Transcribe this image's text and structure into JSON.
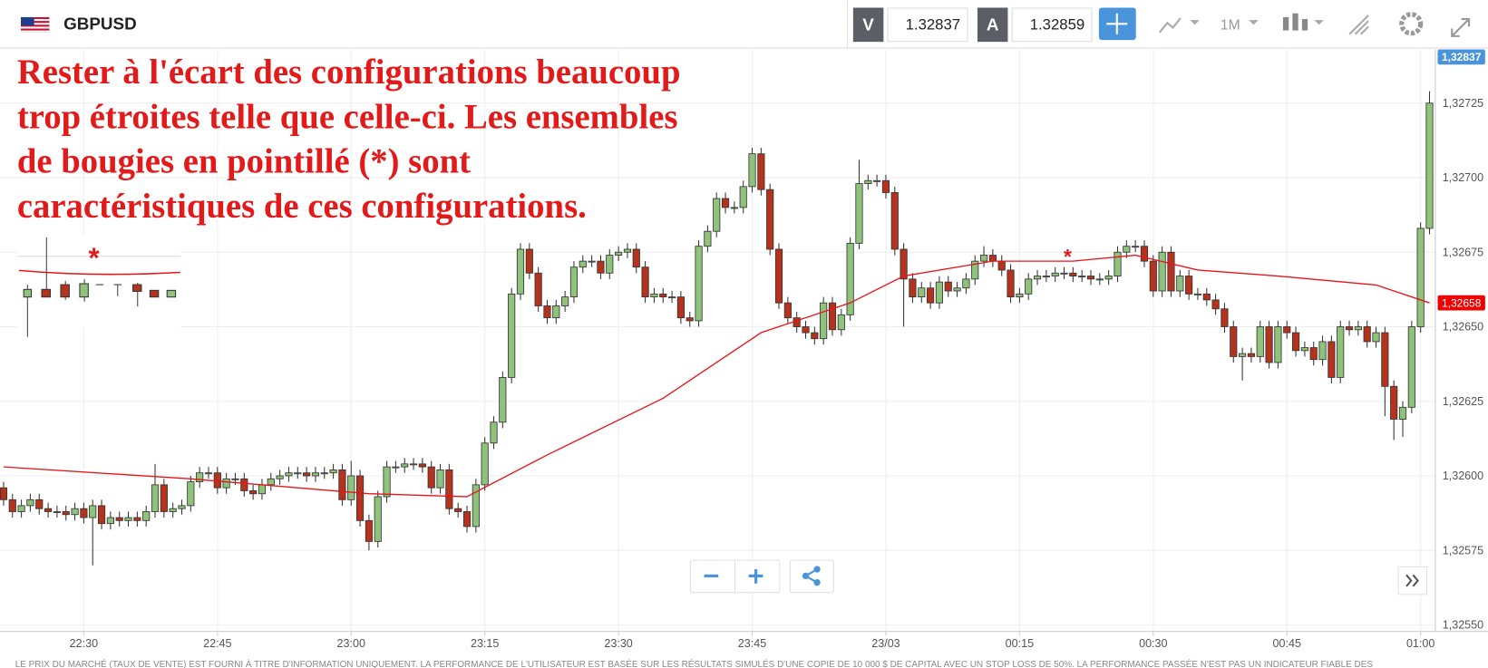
{
  "toolbar": {
    "symbol": "GBPUSD",
    "bid_label": "V",
    "bid": "1.32837",
    "ask_label": "A",
    "ask": "1.32859",
    "timeframe": "1M"
  },
  "annotation": {
    "lines": [
      "Rester à l'écart des configurations beaucoup",
      "trop étroites telle que celle-ci. Les ensembles",
      "de bougies en pointillé (*) sont",
      "caractéristiques de ces configurations."
    ],
    "markers": [
      "*",
      "*"
    ]
  },
  "chart": {
    "type": "candlestick",
    "up_color": "#8fc27a",
    "down_color": "#b5321d",
    "candles": [
      [
        1.32596,
        1.32598,
        1.3259,
        1.32592
      ],
      [
        1.32592,
        1.32594,
        1.32586,
        1.32588
      ],
      [
        1.32588,
        1.32592,
        1.32586,
        1.3259
      ],
      [
        1.3259,
        1.32594,
        1.32588,
        1.32592
      ],
      [
        1.32592,
        1.32594,
        1.32587,
        1.32589
      ],
      [
        1.32589,
        1.32591,
        1.32586,
        1.32588
      ],
      [
        1.32588,
        1.3259,
        1.32586,
        1.32588
      ],
      [
        1.32588,
        1.3259,
        1.32585,
        1.32587
      ],
      [
        1.32587,
        1.32591,
        1.32585,
        1.32589
      ],
      [
        1.32589,
        1.32591,
        1.32584,
        1.32586
      ],
      [
        1.32586,
        1.32592,
        1.3257,
        1.3259
      ],
      [
        1.3259,
        1.32592,
        1.32582,
        1.32584
      ],
      [
        1.32584,
        1.32588,
        1.32582,
        1.32586
      ],
      [
        1.32586,
        1.32588,
        1.32583,
        1.32585
      ],
      [
        1.32585,
        1.32588,
        1.32583,
        1.32586
      ],
      [
        1.32586,
        1.32588,
        1.32583,
        1.32585
      ],
      [
        1.32585,
        1.3259,
        1.32583,
        1.32588
      ],
      [
        1.32588,
        1.32604,
        1.32586,
        1.32597
      ],
      [
        1.32597,
        1.32599,
        1.32586,
        1.32588
      ],
      [
        1.32588,
        1.32591,
        1.32586,
        1.32589
      ],
      [
        1.32589,
        1.32592,
        1.32587,
        1.3259
      ],
      [
        1.3259,
        1.326,
        1.32588,
        1.32598
      ],
      [
        1.32598,
        1.32603,
        1.32596,
        1.32601
      ],
      [
        1.32601,
        1.32603,
        1.32599,
        1.32601
      ],
      [
        1.32601,
        1.32603,
        1.32594,
        1.32596
      ],
      [
        1.32596,
        1.32601,
        1.32594,
        1.32599
      ],
      [
        1.32599,
        1.32601,
        1.32597,
        1.32599
      ],
      [
        1.32599,
        1.32601,
        1.32593,
        1.32595
      ],
      [
        1.32595,
        1.32597,
        1.32592,
        1.32594
      ],
      [
        1.32594,
        1.32599,
        1.32592,
        1.32597
      ],
      [
        1.32597,
        1.32601,
        1.32595,
        1.32599
      ],
      [
        1.32599,
        1.32602,
        1.32597,
        1.326
      ],
      [
        1.326,
        1.32603,
        1.32598,
        1.32601
      ],
      [
        1.32601,
        1.32603,
        1.32599,
        1.32601
      ],
      [
        1.32601,
        1.32603,
        1.32598,
        1.326
      ],
      [
        1.326,
        1.32603,
        1.32598,
        1.32601
      ],
      [
        1.32601,
        1.32603,
        1.32599,
        1.32601
      ],
      [
        1.32601,
        1.32604,
        1.32599,
        1.32602
      ],
      [
        1.32602,
        1.32604,
        1.3259,
        1.32592
      ],
      [
        1.32592,
        1.32605,
        1.3259,
        1.326
      ],
      [
        1.326,
        1.32602,
        1.32583,
        1.32585
      ],
      [
        1.32585,
        1.32587,
        1.32575,
        1.32578
      ],
      [
        1.32578,
        1.32595,
        1.32576,
        1.32593
      ],
      [
        1.32593,
        1.32605,
        1.32591,
        1.32603
      ],
      [
        1.32603,
        1.32605,
        1.32601,
        1.32603
      ],
      [
        1.32603,
        1.32606,
        1.32601,
        1.32604
      ],
      [
        1.32604,
        1.32606,
        1.32602,
        1.32604
      ],
      [
        1.32604,
        1.32606,
        1.32601,
        1.32603
      ],
      [
        1.32603,
        1.32605,
        1.32594,
        1.32596
      ],
      [
        1.32596,
        1.32604,
        1.32594,
        1.32602
      ],
      [
        1.32602,
        1.32604,
        1.32587,
        1.32589
      ],
      [
        1.32589,
        1.32591,
        1.32586,
        1.32588
      ],
      [
        1.32588,
        1.3259,
        1.32581,
        1.32583
      ],
      [
        1.32583,
        1.32599,
        1.32581,
        1.32597
      ],
      [
        1.32597,
        1.32613,
        1.32595,
        1.32611
      ],
      [
        1.32611,
        1.3262,
        1.32609,
        1.32618
      ],
      [
        1.32618,
        1.32635,
        1.32616,
        1.32633
      ],
      [
        1.32633,
        1.32663,
        1.32631,
        1.32661
      ],
      [
        1.32661,
        1.32678,
        1.32659,
        1.32676
      ],
      [
        1.32676,
        1.32678,
        1.32666,
        1.32668
      ],
      [
        1.32668,
        1.3267,
        1.32655,
        1.32657
      ],
      [
        1.32657,
        1.32659,
        1.32651,
        1.32653
      ],
      [
        1.32653,
        1.32659,
        1.32651,
        1.32657
      ],
      [
        1.32657,
        1.32662,
        1.32655,
        1.3266
      ],
      [
        1.3266,
        1.32672,
        1.32658,
        1.3267
      ],
      [
        1.3267,
        1.32674,
        1.32668,
        1.32672
      ],
      [
        1.32672,
        1.32674,
        1.3267,
        1.32672
      ],
      [
        1.32672,
        1.32674,
        1.32666,
        1.32668
      ],
      [
        1.32668,
        1.32676,
        1.32666,
        1.32674
      ],
      [
        1.32674,
        1.32677,
        1.32672,
        1.32675
      ],
      [
        1.32675,
        1.32678,
        1.32673,
        1.32676
      ],
      [
        1.32676,
        1.32678,
        1.32668,
        1.3267
      ],
      [
        1.3267,
        1.32672,
        1.32658,
        1.3266
      ],
      [
        1.3266,
        1.32663,
        1.32658,
        1.32661
      ],
      [
        1.32661,
        1.32663,
        1.32658,
        1.3266
      ],
      [
        1.3266,
        1.32662,
        1.32658,
        1.3266
      ],
      [
        1.3266,
        1.32662,
        1.32651,
        1.32653
      ],
      [
        1.32653,
        1.32655,
        1.3265,
        1.32652
      ],
      [
        1.32652,
        1.32679,
        1.3265,
        1.32677
      ],
      [
        1.32677,
        1.32684,
        1.32675,
        1.32682
      ],
      [
        1.32682,
        1.32695,
        1.3268,
        1.32693
      ],
      [
        1.32693,
        1.32695,
        1.32688,
        1.3269
      ],
      [
        1.3269,
        1.32692,
        1.32688,
        1.3269
      ],
      [
        1.3269,
        1.32699,
        1.32688,
        1.32697
      ],
      [
        1.32697,
        1.3271,
        1.32695,
        1.32708
      ],
      [
        1.32708,
        1.3271,
        1.32694,
        1.32696
      ],
      [
        1.32696,
        1.32698,
        1.32674,
        1.32676
      ],
      [
        1.32676,
        1.32678,
        1.32656,
        1.32658
      ],
      [
        1.32658,
        1.3266,
        1.32651,
        1.32653
      ],
      [
        1.32653,
        1.32655,
        1.32648,
        1.3265
      ],
      [
        1.3265,
        1.32652,
        1.32646,
        1.32648
      ],
      [
        1.32648,
        1.3265,
        1.32644,
        1.32646
      ],
      [
        1.32646,
        1.3266,
        1.32644,
        1.32658
      ],
      [
        1.32658,
        1.3266,
        1.32647,
        1.32649
      ],
      [
        1.32649,
        1.32656,
        1.32647,
        1.32654
      ],
      [
        1.32654,
        1.3268,
        1.32652,
        1.32678
      ],
      [
        1.32678,
        1.32706,
        1.32676,
        1.32698
      ],
      [
        1.32698,
        1.32701,
        1.32696,
        1.32699
      ],
      [
        1.32699,
        1.32701,
        1.32697,
        1.32699
      ],
      [
        1.32699,
        1.32701,
        1.32693,
        1.32695
      ],
      [
        1.32695,
        1.32697,
        1.32674,
        1.32676
      ],
      [
        1.32676,
        1.32678,
        1.3265,
        1.32666
      ],
      [
        1.32666,
        1.32668,
        1.32658,
        1.3266
      ],
      [
        1.3266,
        1.32665,
        1.32658,
        1.32663
      ],
      [
        1.32663,
        1.32665,
        1.32656,
        1.32658
      ],
      [
        1.32658,
        1.32667,
        1.32656,
        1.32665
      ],
      [
        1.32665,
        1.32667,
        1.3266,
        1.32662
      ],
      [
        1.32662,
        1.32665,
        1.3266,
        1.32663
      ],
      [
        1.32663,
        1.32668,
        1.32661,
        1.32666
      ],
      [
        1.32666,
        1.32674,
        1.32664,
        1.32672
      ],
      [
        1.32672,
        1.32677,
        1.3267,
        1.32674
      ],
      [
        1.32674,
        1.32676,
        1.3267,
        1.32672
      ],
      [
        1.32672,
        1.32674,
        1.32667,
        1.32669
      ],
      [
        1.32669,
        1.32671,
        1.32658,
        1.3266
      ],
      [
        1.3266,
        1.32663,
        1.32658,
        1.32661
      ],
      [
        1.32661,
        1.32668,
        1.32659,
        1.32666
      ],
      [
        1.32666,
        1.32669,
        1.32664,
        1.32667
      ],
      [
        1.32667,
        1.32669,
        1.32665,
        1.32667
      ],
      [
        1.32667,
        1.3267,
        1.32665,
        1.32668
      ],
      [
        1.32668,
        1.3267,
        1.32666,
        1.32668
      ],
      [
        1.32668,
        1.3267,
        1.32665,
        1.32667
      ],
      [
        1.32667,
        1.32669,
        1.32665,
        1.32667
      ],
      [
        1.32667,
        1.32669,
        1.32664,
        1.32666
      ],
      [
        1.32666,
        1.32668,
        1.32664,
        1.32666
      ],
      [
        1.32666,
        1.32669,
        1.32664,
        1.32667
      ],
      [
        1.32667,
        1.32677,
        1.32665,
        1.32675
      ],
      [
        1.32675,
        1.32679,
        1.32673,
        1.32677
      ],
      [
        1.32677,
        1.32679,
        1.32675,
        1.32677
      ],
      [
        1.32677,
        1.32679,
        1.3267,
        1.32672
      ],
      [
        1.32672,
        1.32674,
        1.3266,
        1.32662
      ],
      [
        1.32662,
        1.32677,
        1.3266,
        1.32675
      ],
      [
        1.32675,
        1.32677,
        1.3266,
        1.32662
      ],
      [
        1.32662,
        1.32669,
        1.3266,
        1.32667
      ],
      [
        1.32667,
        1.32669,
        1.32659,
        1.32661
      ],
      [
        1.32661,
        1.32663,
        1.32659,
        1.32661
      ],
      [
        1.32661,
        1.32663,
        1.32657,
        1.32659
      ],
      [
        1.32659,
        1.32661,
        1.32654,
        1.32656
      ],
      [
        1.32656,
        1.32658,
        1.32648,
        1.3265
      ],
      [
        1.3265,
        1.32652,
        1.32638,
        1.3264
      ],
      [
        1.3264,
        1.32643,
        1.32632,
        1.32641
      ],
      [
        1.32641,
        1.32643,
        1.32638,
        1.3264
      ],
      [
        1.3264,
        1.32652,
        1.32638,
        1.3265
      ],
      [
        1.3265,
        1.32652,
        1.32636,
        1.32638
      ],
      [
        1.32638,
        1.32652,
        1.32636,
        1.3265
      ],
      [
        1.3265,
        1.32652,
        1.32646,
        1.32648
      ],
      [
        1.32648,
        1.3265,
        1.3264,
        1.32642
      ],
      [
        1.32642,
        1.32645,
        1.3264,
        1.32643
      ],
      [
        1.32643,
        1.32645,
        1.32637,
        1.32639
      ],
      [
        1.32639,
        1.32647,
        1.32637,
        1.32645
      ],
      [
        1.32645,
        1.32647,
        1.32631,
        1.32633
      ],
      [
        1.32633,
        1.32652,
        1.32631,
        1.3265
      ],
      [
        1.3265,
        1.32652,
        1.32647,
        1.32649
      ],
      [
        1.32649,
        1.32652,
        1.32647,
        1.3265
      ],
      [
        1.3265,
        1.32652,
        1.32643,
        1.32645
      ],
      [
        1.32645,
        1.3265,
        1.32643,
        1.32648
      ],
      [
        1.32648,
        1.3265,
        1.3262,
        1.3263
      ],
      [
        1.3263,
        1.32632,
        1.32612,
        1.32619
      ],
      [
        1.32619,
        1.32625,
        1.32613,
        1.32623
      ],
      [
        1.32623,
        1.32652,
        1.32621,
        1.3265
      ],
      [
        1.3265,
        1.32685,
        1.32648,
        1.32683
      ],
      [
        1.32683,
        1.32729,
        1.32681,
        1.32725
      ]
    ],
    "ma": {
      "color": "#e8141b",
      "x": [
        0,
        21,
        41,
        52,
        61,
        74,
        85,
        95,
        101,
        111,
        120,
        127,
        134,
        143,
        154,
        160
      ],
      "values": [
        1.32603,
        1.32599,
        1.32594,
        1.32593,
        1.32607,
        1.32626,
        1.32648,
        1.32658,
        1.32667,
        1.32672,
        1.32672,
        1.32674,
        1.32669,
        1.32667,
        1.32664,
        1.32658
      ]
    },
    "xlim": [
      -0.4,
      160.6
    ],
    "xticks": [
      {
        "value": 9,
        "label": "22:30"
      },
      {
        "value": 24,
        "label": "22:45"
      },
      {
        "value": 39,
        "label": "23:00"
      },
      {
        "value": 54,
        "label": "23:15"
      },
      {
        "value": 69,
        "label": "23:30"
      },
      {
        "value": 84,
        "label": "23:45"
      },
      {
        "value": 99,
        "label": "23/03"
      },
      {
        "value": 114,
        "label": "00:15"
      },
      {
        "value": 129,
        "label": "00:30"
      },
      {
        "value": 144,
        "label": "00:45"
      },
      {
        "value": 159,
        "label": "01:00"
      }
    ],
    "ylim": [
      1.32548,
      1.32743
    ],
    "yticks": [
      {
        "value": 1.3255,
        "label": "1,32550"
      },
      {
        "value": 1.32575,
        "label": "1,32575"
      },
      {
        "value": 1.326,
        "label": "1,32600"
      },
      {
        "value": 1.32625,
        "label": "1,32625"
      },
      {
        "value": 1.3265,
        "label": "1,32650"
      },
      {
        "value": 1.32675,
        "label": "1,32675"
      },
      {
        "value": 1.327,
        "label": "1,32700"
      },
      {
        "value": 1.32725,
        "label": "1,32725"
      }
    ],
    "grid": true,
    "price_badge": "1,32837",
    "ma_badge": "1,32658"
  },
  "footer": "LE PRIX DU MARCHÉ (TAUX DE VENTE) EST FOURNI À TITRE D'INFORMATION UNIQUEMENT. LA PERFORMANCE DE L'UTILISATEUR EST BASÉE SUR LES RÉSULTATS SIMULÉS D'UNE COPIE DE 10 000 $ DE CAPITAL AVEC UN STOP LOSS DE 50%. LA PERFORMANCE PASSÉE N'EST PAS UN INDICATEUR FIABLE DES"
}
